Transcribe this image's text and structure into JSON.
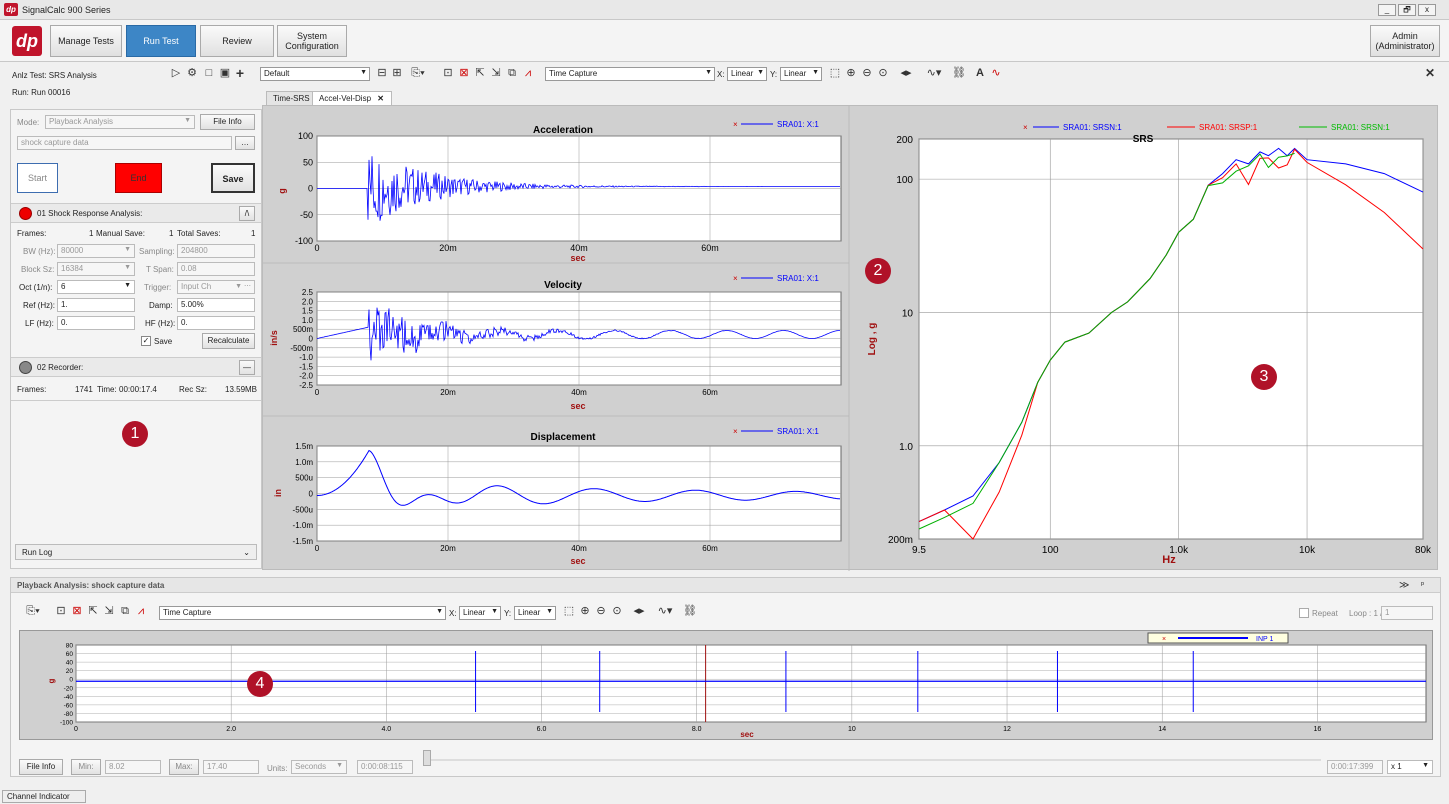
{
  "app": {
    "title": "SignalCalc 900 Series",
    "logo": "dp"
  },
  "window_controls": [
    "_",
    "🗗",
    "x"
  ],
  "nav": {
    "manage_tests": "Manage Tests",
    "run_test": "Run Test",
    "review": "Review",
    "system_config": "System Configuration",
    "user": "Admin (Administrator)"
  },
  "test_info": {
    "anlz_test": "Anlz Test: SRS Analysis",
    "run": "Run: Run 00016"
  },
  "toolbar": {
    "layout": "Default",
    "capture": "Time Capture",
    "x_label": "X:",
    "x_scale": "Linear",
    "y_label": "Y:",
    "y_scale": "Linear"
  },
  "tabs": [
    {
      "label": "Time-SRS"
    },
    {
      "label": "Accel-Vel-Disp"
    }
  ],
  "left": {
    "mode_label": "Mode:",
    "mode_value": "Playback Analysis",
    "file_info": "File Info",
    "source": "shock capture data",
    "start": "Start",
    "end": "End",
    "save": "Save",
    "srs_title": "01 Shock Response Analysis:",
    "frames_label": "Frames:",
    "frames_value": "1",
    "manual_save_label": "Manual Save:",
    "manual_save_value": "1",
    "total_saves_label": "Total Saves:",
    "total_saves_value": "1",
    "bw_label": "BW (Hz):",
    "bw_value": "80000",
    "sampling_label": "Sampling:",
    "sampling_value": "204800",
    "block_label": "Block Sz:",
    "block_value": "16384",
    "tspan_label": "T Span:",
    "tspan_value": "0.08",
    "oct_label": "Oct (1/n):",
    "oct_value": "6",
    "trigger_label": "Trigger:",
    "trigger_value": "Input Ch",
    "ref_label": "Ref (Hz):",
    "ref_value": "1.",
    "damp_label": "Damp:",
    "damp_value": "5.00%",
    "lf_label": "LF (Hz):",
    "lf_value": "0.",
    "hf_label": "HF (Hz):",
    "hf_value": "0.",
    "save_check": "Save",
    "recalc": "Recalculate",
    "rec_title": "02 Recorder:",
    "rec_frames_label": "Frames:",
    "rec_frames_value": "1741",
    "rec_time_label": "Time:",
    "rec_time_value": "00:00:17.4",
    "rec_sz_label": "Rec Sz:",
    "rec_sz_value": "13.59MB",
    "run_log": "Run Log"
  },
  "callouts": [
    "1",
    "2",
    "3",
    "4"
  ],
  "charts": {
    "accel": {
      "title": "Acceleration",
      "ylabel": "g",
      "xlabel": "sec",
      "legend": "SRA01: X:1",
      "yticks": [
        "100",
        "50",
        "0",
        "-50",
        "-100"
      ],
      "xticks": [
        "0",
        "20m",
        "40m",
        "60m"
      ]
    },
    "vel": {
      "title": "Velocity",
      "ylabel": "in/s",
      "xlabel": "sec",
      "legend": "SRA01: X:1",
      "yticks": [
        "2.5",
        "2.0",
        "1.5",
        "1.0",
        "500m",
        "0",
        "-500m",
        "-1.0",
        "-1.5",
        "-2.0",
        "-2.5"
      ],
      "xticks": [
        "0",
        "20m",
        "40m",
        "60m"
      ]
    },
    "disp": {
      "title": "Displacement",
      "ylabel": "in",
      "xlabel": "sec",
      "legend": "SRA01: X:1",
      "yticks": [
        "1.5m",
        "1.0m",
        "500u",
        "0",
        "-500u",
        "-1.0m",
        "-1.5m"
      ],
      "xticks": [
        "0",
        "20m",
        "40m",
        "60m"
      ]
    },
    "srs": {
      "title": "SRS",
      "ylabel": "Log , g",
      "xlabel": "Hz",
      "legend": [
        "SRA01: SRSN:1",
        "SRA01: SRSP:1",
        "SRA01: SRSN:1"
      ],
      "yticks": [
        "200",
        "100",
        "10",
        "1.0",
        "200m"
      ],
      "xticks": [
        "9.5",
        "100",
        "1.0k",
        "10k",
        "80k"
      ]
    },
    "playback": {
      "ylabel": "g",
      "xlabel": "sec",
      "legend": "INP 1",
      "yticks": [
        "80",
        "60",
        "40",
        "20",
        "0",
        "-20",
        "-40",
        "-60",
        "-80",
        "-100"
      ],
      "xticks": [
        "0",
        "2.0",
        "4.0",
        "6.0",
        "8.0",
        "10",
        "12",
        "14",
        "16"
      ]
    }
  },
  "colors": {
    "series_blue": "#0000ff",
    "series_red": "#ff0000",
    "series_green": "#00b000",
    "axis_red": "#a01010",
    "accent": "#3d86c6",
    "end_red": "#ff0000"
  },
  "bottom": {
    "header": "Playback Analysis: shock capture data",
    "capture": "Time Capture",
    "x_label": "X:",
    "x_scale": "Linear",
    "y_label": "Y:",
    "y_scale": "Linear",
    "repeat": "Repeat",
    "loop_label": "Loop : 1 /",
    "loop_value": "1",
    "file_info": "File Info",
    "min_label": "Min:",
    "min_value": "8.02",
    "max_label": "Max:",
    "max_value": "17.40",
    "units_label": "Units:",
    "units_value": "Seconds",
    "pos_value": "0:00:08:115",
    "end_value": "0:00:17:399",
    "speed": "x 1"
  },
  "status": {
    "channel_indicator": "Channel Indicator"
  }
}
